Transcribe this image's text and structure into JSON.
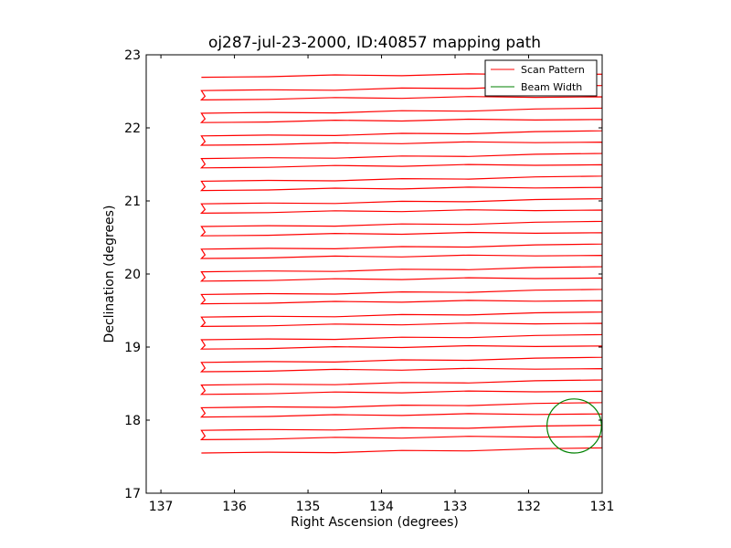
{
  "chart_data": {
    "type": "line",
    "title": "oj287-jul-23-2000, ID:40857 mapping path",
    "xlabel": "Right Ascension (degrees)",
    "ylabel": "Declination (degrees)",
    "xlim": [
      137.2,
      131.0
    ],
    "ylim": [
      17.0,
      23.0
    ],
    "x_ticks": [
      137,
      136,
      135,
      134,
      133,
      132,
      131
    ],
    "y_ticks": [
      17,
      18,
      19,
      20,
      21,
      22,
      23
    ],
    "x_tick_labels": [
      "137",
      "136",
      "135",
      "134",
      "133",
      "132",
      "131"
    ],
    "y_tick_labels": [
      "17",
      "18",
      "19",
      "20",
      "21",
      "22",
      "23"
    ],
    "grid": false,
    "legend_position": "top-right",
    "series": [
      {
        "name": "Scan Pattern",
        "color": "#ff0000",
        "kind": "raster-scan",
        "ra_start": 136.45,
        "ra_end": 131.0,
        "dec_start": 17.55,
        "dec_end": 22.72,
        "dec_step": 0.155,
        "row_tilt": 0.07
      },
      {
        "name": "Beam Width",
        "color": "#008000",
        "kind": "circle",
        "center_ra": 131.38,
        "center_dec": 17.92,
        "radius_deg": 0.37
      }
    ]
  }
}
